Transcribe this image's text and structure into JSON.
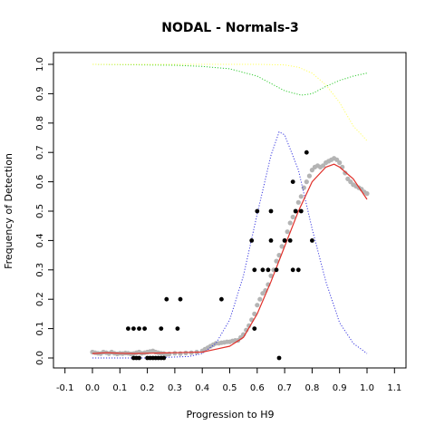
{
  "chart_data": {
    "type": "scatter",
    "title": "NODAL - Normals-3",
    "xlabel": "Progression to H9",
    "ylabel": "Frequency of Detection",
    "xlim": [
      -0.1,
      1.1
    ],
    "ylim": [
      0.0,
      1.0
    ],
    "x_ticks": [
      "-0.1",
      "0.0",
      "0.1",
      "0.2",
      "0.3",
      "0.4",
      "0.5",
      "0.6",
      "0.7",
      "0.8",
      "0.9",
      "1.0",
      "1.1"
    ],
    "y_ticks": [
      "0.0",
      "0.1",
      "0.2",
      "0.3",
      "0.4",
      "0.5",
      "0.6",
      "0.7",
      "0.8",
      "0.9",
      "1.0"
    ],
    "grid": false,
    "colors": {
      "observed": "#000000",
      "smoothed": "#b4b4b4",
      "fit": "#e0302a",
      "density": "#3a3ae0",
      "green": "#33cc33",
      "yellow": "#ffff66"
    },
    "series": [
      {
        "type": "scatter",
        "color": "observed",
        "points": [
          [
            0.13,
            0.1
          ],
          [
            0.15,
            0.1
          ],
          [
            0.17,
            0.1
          ],
          [
            0.19,
            0.1
          ],
          [
            0.25,
            0.1
          ],
          [
            0.31,
            0.1
          ],
          [
            0.27,
            0.2
          ],
          [
            0.32,
            0.2
          ],
          [
            0.47,
            0.2
          ],
          [
            0.15,
            0.0
          ],
          [
            0.16,
            0.0
          ],
          [
            0.17,
            0.0
          ],
          [
            0.2,
            0.0
          ],
          [
            0.21,
            0.0
          ],
          [
            0.22,
            0.0
          ],
          [
            0.23,
            0.0
          ],
          [
            0.24,
            0.0
          ],
          [
            0.25,
            0.0
          ],
          [
            0.26,
            0.0
          ],
          [
            0.68,
            0.0
          ],
          [
            0.59,
            0.1
          ],
          [
            0.59,
            0.3
          ],
          [
            0.62,
            0.3
          ],
          [
            0.64,
            0.3
          ],
          [
            0.58,
            0.4
          ],
          [
            0.65,
            0.4
          ],
          [
            0.6,
            0.5
          ],
          [
            0.65,
            0.5
          ],
          [
            0.67,
            0.3
          ],
          [
            0.7,
            0.4
          ],
          [
            0.72,
            0.4
          ],
          [
            0.73,
            0.3
          ],
          [
            0.75,
            0.3
          ],
          [
            0.73,
            0.6
          ],
          [
            0.74,
            0.5
          ],
          [
            0.76,
            0.5
          ],
          [
            0.78,
            0.7
          ],
          [
            0.8,
            0.4
          ]
        ]
      },
      {
        "type": "scatter",
        "color": "smoothed",
        "points": [
          [
            0.0,
            0.02
          ],
          [
            0.01,
            0.018
          ],
          [
            0.02,
            0.016
          ],
          [
            0.03,
            0.015
          ],
          [
            0.04,
            0.02
          ],
          [
            0.05,
            0.018
          ],
          [
            0.06,
            0.015
          ],
          [
            0.07,
            0.02
          ],
          [
            0.08,
            0.016
          ],
          [
            0.09,
            0.014
          ],
          [
            0.1,
            0.016
          ],
          [
            0.11,
            0.015
          ],
          [
            0.12,
            0.017
          ],
          [
            0.13,
            0.016
          ],
          [
            0.14,
            0.014
          ],
          [
            0.15,
            0.015
          ],
          [
            0.16,
            0.018
          ],
          [
            0.17,
            0.02
          ],
          [
            0.18,
            0.016
          ],
          [
            0.19,
            0.018
          ],
          [
            0.2,
            0.02
          ],
          [
            0.21,
            0.022
          ],
          [
            0.22,
            0.024
          ],
          [
            0.23,
            0.02
          ],
          [
            0.24,
            0.018
          ],
          [
            0.25,
            0.016
          ],
          [
            0.26,
            0.015
          ],
          [
            0.27,
            0.012
          ],
          [
            0.28,
            0.014
          ],
          [
            0.3,
            0.016
          ],
          [
            0.32,
            0.015
          ],
          [
            0.34,
            0.017
          ],
          [
            0.36,
            0.018
          ],
          [
            0.38,
            0.02
          ],
          [
            0.4,
            0.024
          ],
          [
            0.41,
            0.03
          ],
          [
            0.42,
            0.035
          ],
          [
            0.43,
            0.04
          ],
          [
            0.44,
            0.045
          ],
          [
            0.45,
            0.05
          ],
          [
            0.46,
            0.05
          ],
          [
            0.47,
            0.052
          ],
          [
            0.48,
            0.053
          ],
          [
            0.49,
            0.055
          ],
          [
            0.5,
            0.055
          ],
          [
            0.51,
            0.058
          ],
          [
            0.52,
            0.06
          ],
          [
            0.53,
            0.06
          ],
          [
            0.54,
            0.07
          ],
          [
            0.55,
            0.08
          ],
          [
            0.56,
            0.095
          ],
          [
            0.57,
            0.11
          ],
          [
            0.58,
            0.13
          ],
          [
            0.59,
            0.15
          ],
          [
            0.6,
            0.18
          ],
          [
            0.61,
            0.2
          ],
          [
            0.62,
            0.22
          ],
          [
            0.63,
            0.23
          ],
          [
            0.64,
            0.25
          ],
          [
            0.65,
            0.28
          ],
          [
            0.66,
            0.3
          ],
          [
            0.67,
            0.33
          ],
          [
            0.68,
            0.35
          ],
          [
            0.69,
            0.38
          ],
          [
            0.7,
            0.4
          ],
          [
            0.71,
            0.43
          ],
          [
            0.72,
            0.46
          ],
          [
            0.73,
            0.48
          ],
          [
            0.74,
            0.5
          ],
          [
            0.75,
            0.53
          ],
          [
            0.76,
            0.55
          ],
          [
            0.77,
            0.58
          ],
          [
            0.78,
            0.6
          ],
          [
            0.79,
            0.62
          ],
          [
            0.8,
            0.64
          ],
          [
            0.81,
            0.65
          ],
          [
            0.82,
            0.655
          ],
          [
            0.83,
            0.65
          ],
          [
            0.84,
            0.655
          ],
          [
            0.85,
            0.665
          ],
          [
            0.86,
            0.67
          ],
          [
            0.87,
            0.675
          ],
          [
            0.88,
            0.68
          ],
          [
            0.89,
            0.675
          ],
          [
            0.9,
            0.665
          ],
          [
            0.91,
            0.65
          ],
          [
            0.92,
            0.63
          ],
          [
            0.93,
            0.61
          ],
          [
            0.94,
            0.6
          ],
          [
            0.95,
            0.59
          ],
          [
            0.96,
            0.585
          ],
          [
            0.97,
            0.58
          ],
          [
            0.98,
            0.575
          ],
          [
            0.99,
            0.565
          ],
          [
            1.0,
            0.56
          ]
        ]
      },
      {
        "type": "line",
        "color": "fit",
        "points": [
          [
            0.0,
            0.015
          ],
          [
            0.05,
            0.018
          ],
          [
            0.1,
            0.016
          ],
          [
            0.15,
            0.015
          ],
          [
            0.2,
            0.016
          ],
          [
            0.25,
            0.017
          ],
          [
            0.3,
            0.018
          ],
          [
            0.35,
            0.019
          ],
          [
            0.4,
            0.02
          ],
          [
            0.45,
            0.03
          ],
          [
            0.5,
            0.04
          ],
          [
            0.55,
            0.07
          ],
          [
            0.6,
            0.15
          ],
          [
            0.65,
            0.26
          ],
          [
            0.7,
            0.38
          ],
          [
            0.75,
            0.5
          ],
          [
            0.8,
            0.6
          ],
          [
            0.85,
            0.65
          ],
          [
            0.88,
            0.66
          ],
          [
            0.9,
            0.65
          ],
          [
            0.95,
            0.61
          ],
          [
            1.0,
            0.54
          ]
        ]
      },
      {
        "type": "line",
        "style": "dotted",
        "color": "density",
        "points": [
          [
            0.0,
            0.0
          ],
          [
            0.2,
            0.0
          ],
          [
            0.35,
            0.005
          ],
          [
            0.4,
            0.015
          ],
          [
            0.45,
            0.05
          ],
          [
            0.5,
            0.13
          ],
          [
            0.55,
            0.28
          ],
          [
            0.6,
            0.49
          ],
          [
            0.65,
            0.69
          ],
          [
            0.68,
            0.77
          ],
          [
            0.7,
            0.76
          ],
          [
            0.75,
            0.64
          ],
          [
            0.8,
            0.44
          ],
          [
            0.85,
            0.26
          ],
          [
            0.9,
            0.12
          ],
          [
            0.95,
            0.05
          ],
          [
            1.0,
            0.015
          ]
        ]
      },
      {
        "type": "line",
        "style": "dotted",
        "color": "green",
        "points": [
          [
            0.0,
            1.0
          ],
          [
            0.3,
            0.997
          ],
          [
            0.4,
            0.993
          ],
          [
            0.5,
            0.985
          ],
          [
            0.6,
            0.96
          ],
          [
            0.65,
            0.935
          ],
          [
            0.7,
            0.91
          ],
          [
            0.76,
            0.895
          ],
          [
            0.8,
            0.9
          ],
          [
            0.85,
            0.925
          ],
          [
            0.9,
            0.945
          ],
          [
            0.95,
            0.96
          ],
          [
            1.0,
            0.97
          ]
        ]
      },
      {
        "type": "line",
        "style": "dotted",
        "color": "yellow",
        "points": [
          [
            0.0,
            1.0
          ],
          [
            0.6,
            1.0
          ],
          [
            0.7,
            0.998
          ],
          [
            0.75,
            0.99
          ],
          [
            0.8,
            0.97
          ],
          [
            0.85,
            0.93
          ],
          [
            0.9,
            0.87
          ],
          [
            0.95,
            0.79
          ],
          [
            1.0,
            0.74
          ]
        ]
      }
    ]
  }
}
